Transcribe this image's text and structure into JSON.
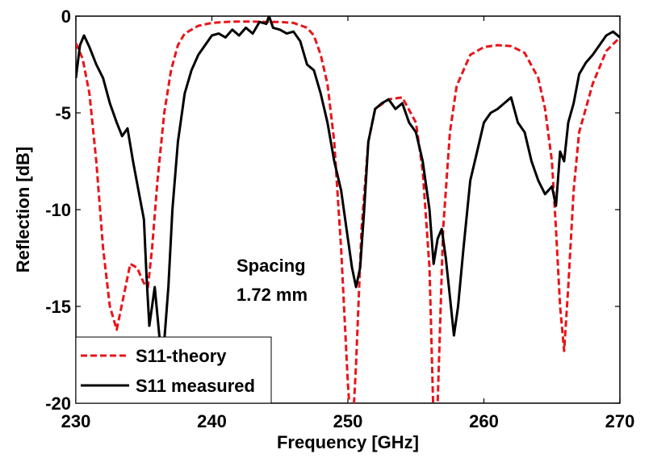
{
  "chart_data": {
    "type": "line",
    "title": "",
    "xlabel": "Frequency [GHz]",
    "ylabel": "Reflection [dB]",
    "xlim": [
      230,
      270
    ],
    "ylim": [
      -20,
      0
    ],
    "xticks": [
      230,
      240,
      250,
      260,
      270
    ],
    "yticks": [
      0,
      -5,
      -10,
      -15,
      -20
    ],
    "grid": false,
    "legend_position": "bottom-left",
    "annotations": [
      "Spacing",
      "1.72 mm"
    ],
    "series": [
      {
        "name": "S11-theory",
        "color": "#e8141a",
        "style": "dashed",
        "x": [
          230,
          230.5,
          231,
          231.5,
          232,
          232.5,
          233,
          233.5,
          234,
          234.5,
          235,
          235.3,
          235.6,
          236,
          236.5,
          237,
          237.5,
          238,
          239,
          240,
          241,
          242,
          243,
          244,
          245,
          246,
          247,
          247.5,
          248,
          248.5,
          249,
          249.5,
          250,
          250.3,
          250.6,
          251,
          251.5,
          252,
          253,
          254,
          255,
          255.5,
          256,
          256.3,
          256.6,
          257,
          257.5,
          258,
          259,
          260,
          261,
          262,
          263,
          264,
          264.5,
          265,
          265.3,
          265.6,
          265.9,
          266.2,
          266.6,
          267,
          268,
          269,
          270
        ],
        "y": [
          -1.4,
          -2.2,
          -4.0,
          -7.5,
          -12.0,
          -15.0,
          -16.2,
          -14.5,
          -12.8,
          -13.0,
          -13.8,
          -14.0,
          -12.0,
          -8.5,
          -5.0,
          -2.8,
          -1.5,
          -0.9,
          -0.5,
          -0.35,
          -0.3,
          -0.28,
          -0.28,
          -0.3,
          -0.3,
          -0.35,
          -0.6,
          -1.0,
          -2.0,
          -3.5,
          -6.5,
          -12.0,
          -19.0,
          -22.0,
          -18.0,
          -11.0,
          -6.5,
          -4.8,
          -4.3,
          -4.2,
          -5.5,
          -8.0,
          -13.0,
          -21.0,
          -20.0,
          -11.0,
          -6.0,
          -3.6,
          -2.0,
          -1.6,
          -1.5,
          -1.55,
          -1.9,
          -3.2,
          -4.8,
          -7.5,
          -11.0,
          -15.0,
          -17.3,
          -14.0,
          -9.0,
          -6.0,
          -3.5,
          -1.8,
          -1.1
        ]
      },
      {
        "name": "S11 measured",
        "color": "#000000",
        "style": "solid",
        "x": [
          230,
          230.3,
          230.6,
          231,
          231.5,
          232,
          232.5,
          233,
          233.4,
          233.8,
          234.2,
          234.6,
          235,
          235.2,
          235.4,
          235.6,
          235.8,
          236,
          236.2,
          236.5,
          236.8,
          237.1,
          237.5,
          238,
          238.5,
          239,
          239.5,
          240,
          240.5,
          241,
          241.5,
          242,
          242.5,
          243,
          243.5,
          244,
          244.2,
          244.5,
          245,
          245.5,
          246,
          246.5,
          247,
          247.5,
          248,
          248.5,
          249,
          249.5,
          250,
          250.3,
          250.6,
          250.9,
          251.2,
          251.5,
          252,
          252.5,
          253,
          253.5,
          254,
          254.5,
          255,
          255.5,
          256,
          256.3,
          256.6,
          256.9,
          257.2,
          257.5,
          257.8,
          258.1,
          258.5,
          259,
          259.5,
          260,
          260.5,
          261,
          261.5,
          262,
          262.5,
          263,
          263.5,
          264,
          264.5,
          265,
          265.3,
          265.6,
          265.9,
          266.2,
          266.6,
          267,
          267.5,
          268,
          268.5,
          269,
          269.5,
          270
        ],
        "y": [
          -3.2,
          -1.5,
          -1.0,
          -1.6,
          -2.5,
          -3.2,
          -4.5,
          -5.5,
          -6.2,
          -5.8,
          -7.5,
          -9.0,
          -10.5,
          -13.5,
          -16.0,
          -15.0,
          -14.0,
          -15.5,
          -17.0,
          -16.8,
          -14.0,
          -10.0,
          -6.5,
          -4.0,
          -2.8,
          -2.0,
          -1.5,
          -1.0,
          -0.9,
          -1.1,
          -0.7,
          -1.0,
          -0.6,
          -0.9,
          -0.3,
          -0.4,
          0.0,
          -0.6,
          -0.7,
          -0.9,
          -0.8,
          -1.3,
          -2.5,
          -2.8,
          -4.0,
          -5.5,
          -7.5,
          -9.0,
          -11.5,
          -13.0,
          -14.0,
          -13.0,
          -10.0,
          -6.5,
          -4.8,
          -4.5,
          -4.3,
          -4.8,
          -4.5,
          -5.5,
          -6.0,
          -7.5,
          -10.0,
          -12.8,
          -11.5,
          -11.0,
          -12.5,
          -14.5,
          -16.5,
          -15.0,
          -12.0,
          -8.5,
          -7.0,
          -5.5,
          -5.0,
          -4.8,
          -4.5,
          -4.2,
          -5.5,
          -6.0,
          -7.5,
          -8.5,
          -9.2,
          -8.8,
          -9.8,
          -7.0,
          -7.5,
          -5.5,
          -4.5,
          -3.0,
          -2.4,
          -2.0,
          -1.5,
          -1.0,
          -0.8,
          -1.1
        ]
      }
    ]
  }
}
